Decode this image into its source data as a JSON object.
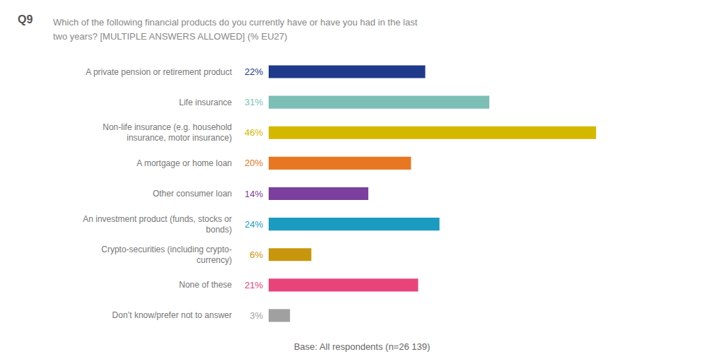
{
  "chart_data": {
    "type": "bar",
    "orientation": "horizontal",
    "title": "Q9",
    "subtitle": "Which of the following financial products do you currently have or have you had in the last\ntwo years? [MULTIPLE ANSWERS ALLOWED] (% EU27)",
    "annotations": [
      "Base: All respondents (n=26 139)"
    ],
    "categories": [
      "A private pension or retirement product",
      "Life insurance",
      "Non-life insurance (e.g. household\ninsurance, motor insurance)",
      "A mortgage or home loan",
      "Other consumer loan",
      "An investment product (funds, stocks or\nbonds)",
      "Crypto-securities (including crypto-\ncurrency)",
      "None of these",
      "Don’t know/prefer not to answer"
    ],
    "values": [
      22,
      31,
      46,
      20,
      14,
      24,
      6,
      21,
      3
    ],
    "value_labels": [
      "22%",
      "31%",
      "46%",
      "20%",
      "14%",
      "24%",
      "6%",
      "21%",
      "3%"
    ],
    "data_labels": true,
    "colors": [
      "#1f3a8a",
      "#7bbfb5",
      "#d4b800",
      "#e87722",
      "#7b3f9e",
      "#1b9bbf",
      "#c8960c",
      "#e8447a",
      "#a0a0a0"
    ],
    "xlim": [
      0,
      60
    ],
    "tick_labels": "y",
    "grid": false
  }
}
